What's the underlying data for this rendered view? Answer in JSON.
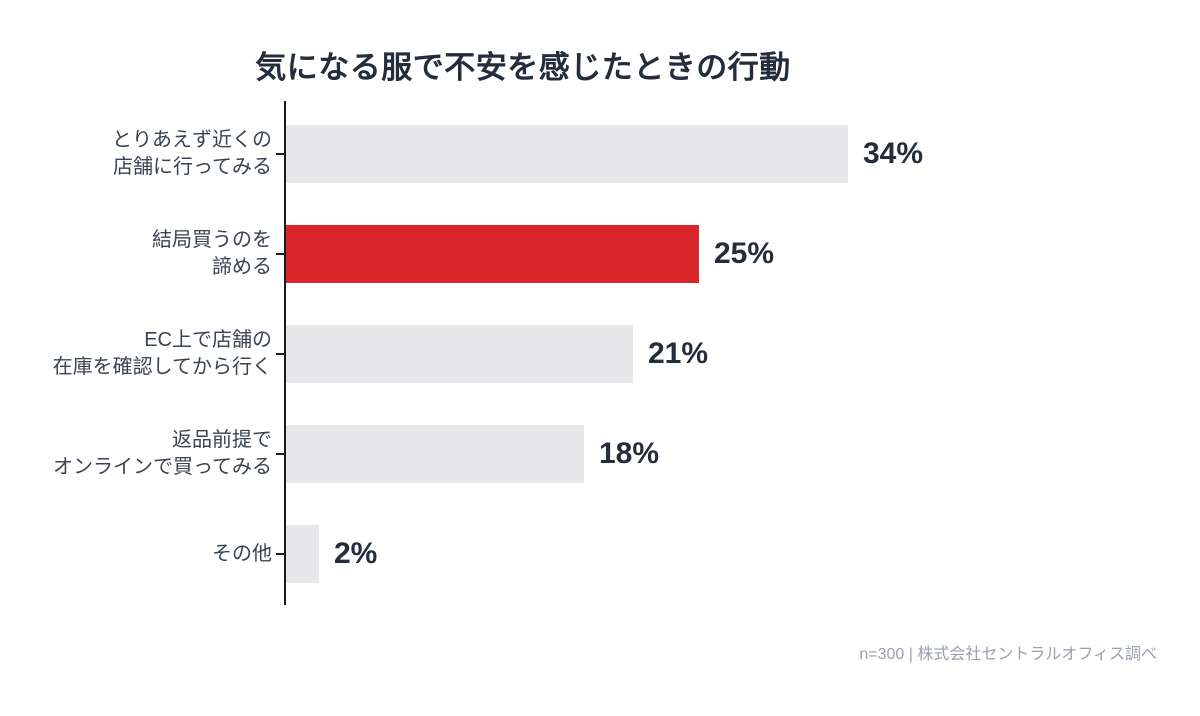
{
  "title": "気になる服で不安を感じたときの行動",
  "footer": "n=300 | 株式会社セントラルオフィス調べ",
  "colors": {
    "bar_default": "#e7e7ea",
    "bar_highlight": "#d9262b",
    "title_text": "#242d3c",
    "label_text": "#3a4351",
    "value_text": "#242d3c",
    "footer_text": "#99a0ae",
    "axis": "#171a1f",
    "background": "#ffffff"
  },
  "chart_data": {
    "type": "bar",
    "orientation": "horizontal",
    "title": "気になる服で不安を感じたときの行動",
    "categories": [
      "とりあえず近くの店舗に行ってみる",
      "結局買うのを諦める",
      "EC上で店舗の在庫を確認してから行く",
      "返品前提でオンラインで買ってみる",
      "その他"
    ],
    "label_lines": [
      [
        "とりあえず近くの",
        "店舗に行ってみる"
      ],
      [
        "結局買うのを",
        "諦める"
      ],
      [
        "EC上で店舗の",
        "在庫を確認してから行く"
      ],
      [
        "返品前提で",
        "オンラインで買ってみる"
      ],
      [
        "その他"
      ]
    ],
    "values": [
      34,
      25,
      21,
      18,
      2
    ],
    "value_labels": [
      "34%",
      "25%",
      "21%",
      "18%",
      "2%"
    ],
    "unit": "%",
    "highlight_index": 1,
    "xlim": [
      0,
      34
    ],
    "grid": false,
    "legend": false,
    "source_note": "n=300 | 株式会社セントラルオフィス調べ"
  }
}
